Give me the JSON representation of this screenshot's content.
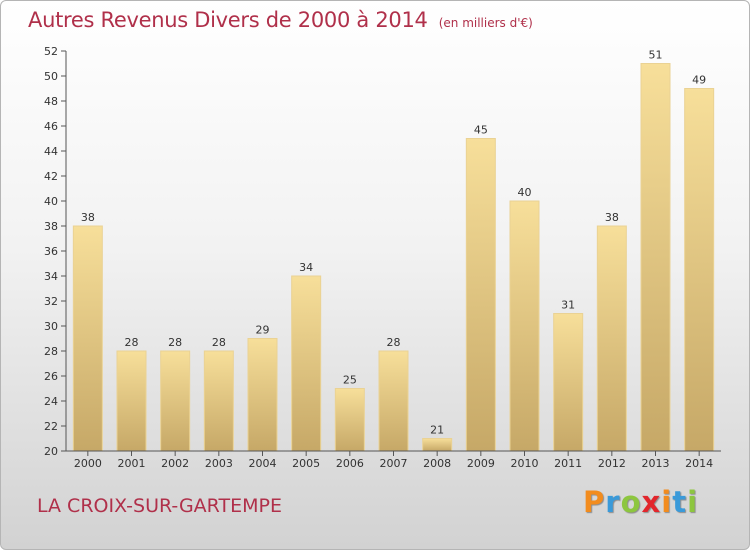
{
  "chart_data": {
    "type": "bar",
    "title": "Autres Revenus Divers de 2000 à 2014",
    "subtitle": "(en milliers d'€)",
    "categories": [
      "2000",
      "2001",
      "2002",
      "2003",
      "2004",
      "2005",
      "2006",
      "2007",
      "2008",
      "2009",
      "2010",
      "2011",
      "2012",
      "2013",
      "2014"
    ],
    "values": [
      38,
      28,
      28,
      28,
      29,
      34,
      25,
      28,
      21,
      45,
      40,
      31,
      38,
      51,
      49
    ],
    "ylim": [
      20,
      52
    ],
    "yticks": [
      20,
      22,
      24,
      26,
      28,
      30,
      32,
      34,
      36,
      38,
      40,
      42,
      44,
      46,
      48,
      50,
      52
    ],
    "grid": false,
    "data_labels": true,
    "bar_color_top": "#f7df9a",
    "bar_color_bottom": "#c6a867",
    "bar_edge_color": "#ead294"
  },
  "footer": {
    "commune": "LA CROIX-SUR-GARTEMPE"
  },
  "logo": {
    "text": "Proxiti",
    "letter_colors": [
      "#f28c1e",
      "#3a9ad9",
      "#8dc63f",
      "#e2262c",
      "#f28c1e",
      "#3a9ad9",
      "#8dc63f"
    ]
  }
}
